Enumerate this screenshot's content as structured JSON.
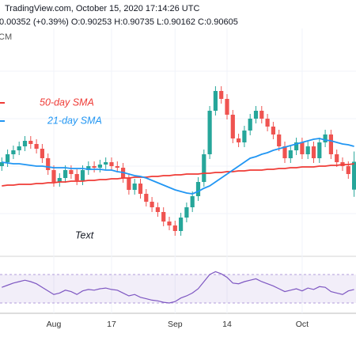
{
  "header": {
    "title": "TradingView.com, October 15, 2020 17:14:26 UTC",
    "quote": "0.00352 (+0.39%) O:0.90253 H:0.90735 L:0.90162 C:0.90605",
    "symbol": "CM"
  },
  "chart_data": [
    {
      "type": "candlestick",
      "categories": [
        null,
        null,
        null,
        null,
        null,
        null,
        null,
        null,
        null,
        "Aug",
        null,
        null,
        null,
        null,
        null,
        null,
        null,
        null,
        null,
        "17",
        null,
        null,
        null,
        null,
        null,
        null,
        null,
        null,
        null,
        null,
        "Sep",
        null,
        null,
        null,
        null,
        null,
        null,
        null,
        null,
        "14",
        null,
        null,
        null,
        null,
        null,
        null,
        null,
        null,
        null,
        null,
        null,
        null,
        "Oct",
        null,
        null,
        null,
        null,
        null,
        null,
        null,
        null,
        null
      ],
      "open": [
        0.9055,
        0.906,
        0.907,
        0.9075,
        0.908,
        0.9087,
        0.9083,
        0.9077,
        0.9065,
        0.905,
        0.9035,
        0.904,
        0.905,
        0.9045,
        0.9037,
        0.905,
        0.9055,
        0.9053,
        0.9057,
        0.906,
        0.9055,
        0.9053,
        0.904,
        0.9025,
        0.9033,
        0.902,
        0.901,
        0.9003,
        0.8997,
        0.8985,
        0.898,
        0.8973,
        0.899,
        0.9003,
        0.9017,
        0.9035,
        0.907,
        0.9125,
        0.915,
        0.914,
        0.912,
        0.909,
        0.9085,
        0.91,
        0.9115,
        0.9125,
        0.9115,
        0.9105,
        0.9095,
        0.908,
        0.9065,
        0.9075,
        0.9085,
        0.907,
        0.908,
        0.9065,
        0.9085,
        0.9095,
        0.907,
        0.906,
        0.9055,
        0.90253
      ],
      "high": [
        0.9066,
        0.9076,
        0.9081,
        0.9086,
        0.9093,
        0.9093,
        0.9089,
        0.9083,
        0.9071,
        0.9056,
        0.9046,
        0.9056,
        0.9056,
        0.9051,
        0.9056,
        0.9061,
        0.9061,
        0.9063,
        0.9066,
        0.9066,
        0.9061,
        0.9059,
        0.9046,
        0.9039,
        0.9039,
        0.9026,
        0.9016,
        0.9009,
        0.9003,
        0.8991,
        0.8986,
        0.8996,
        0.9009,
        0.9023,
        0.9041,
        0.9076,
        0.9131,
        0.9156,
        0.9156,
        0.9146,
        0.9126,
        0.9096,
        0.9106,
        0.9121,
        0.9131,
        0.9131,
        0.9121,
        0.9111,
        0.9101,
        0.9086,
        0.9081,
        0.9091,
        0.9091,
        0.9086,
        0.9086,
        0.9091,
        0.9101,
        0.9101,
        0.9076,
        0.9066,
        0.9061,
        0.90735
      ],
      "low": [
        0.9049,
        0.9054,
        0.9064,
        0.9069,
        0.9074,
        0.9077,
        0.9071,
        0.9059,
        0.9044,
        0.9029,
        0.9029,
        0.9034,
        0.9039,
        0.9031,
        0.9031,
        0.9044,
        0.9047,
        0.9047,
        0.9051,
        0.9049,
        0.9047,
        0.9034,
        0.9019,
        0.9019,
        0.9014,
        0.9004,
        0.8997,
        0.8991,
        0.8979,
        0.8974,
        0.8967,
        0.8967,
        0.8984,
        0.8997,
        0.9011,
        0.9029,
        0.9064,
        0.9119,
        0.9134,
        0.9114,
        0.9084,
        0.9079,
        0.9079,
        0.9094,
        0.9109,
        0.9109,
        0.9099,
        0.9089,
        0.9074,
        0.9059,
        0.9059,
        0.9069,
        0.9064,
        0.9064,
        0.9059,
        0.9059,
        0.9079,
        0.9064,
        0.9054,
        0.9049,
        0.9039,
        0.90162
      ],
      "close": [
        0.906,
        0.907,
        0.9075,
        0.908,
        0.9087,
        0.9083,
        0.9077,
        0.9065,
        0.905,
        0.9035,
        0.904,
        0.905,
        0.9045,
        0.9037,
        0.905,
        0.9055,
        0.9053,
        0.9057,
        0.906,
        0.9055,
        0.9053,
        0.904,
        0.9025,
        0.9033,
        0.902,
        0.901,
        0.9003,
        0.8997,
        0.8985,
        0.898,
        0.8973,
        0.899,
        0.9003,
        0.9017,
        0.9035,
        0.907,
        0.9125,
        0.915,
        0.914,
        0.912,
        0.909,
        0.9085,
        0.91,
        0.9115,
        0.9125,
        0.9115,
        0.9105,
        0.9095,
        0.908,
        0.9065,
        0.9075,
        0.9085,
        0.907,
        0.908,
        0.9065,
        0.9085,
        0.9095,
        0.907,
        0.906,
        0.9055,
        0.9045,
        0.90605
      ],
      "up_color": "#26a69a",
      "down_color": "#ef5350",
      "series": [
        {
          "name": "50-day SMA",
          "color": "#ef3b36",
          "values": [
            0.903,
            0.9031,
            0.9031,
            0.9032,
            0.9032,
            0.9032,
            0.9033,
            0.9033,
            0.9034,
            0.9034,
            0.9035,
            0.9035,
            0.9036,
            0.9036,
            0.9036,
            0.9037,
            0.9037,
            0.9038,
            0.9038,
            0.9039,
            0.9039,
            0.904,
            0.904,
            0.9041,
            0.9041,
            0.9041,
            0.9042,
            0.9042,
            0.9043,
            0.9043,
            0.9044,
            0.9044,
            0.9045,
            0.9045,
            0.9045,
            0.9046,
            0.9046,
            0.9047,
            0.9047,
            0.9048,
            0.9048,
            0.9049,
            0.9049,
            0.905,
            0.905,
            0.905,
            0.9051,
            0.9051,
            0.9052,
            0.9052,
            0.9053,
            0.9053,
            0.9054,
            0.9054,
            0.9054,
            0.9055,
            0.9055,
            0.9056,
            0.9056,
            0.9057,
            0.9057,
            0.9058
          ]
        },
        {
          "name": "21-day SMA",
          "color": "#2196f3",
          "values": [
            0.906,
            0.9059,
            0.9058,
            0.9058,
            0.9057,
            0.9056,
            0.9055,
            0.9055,
            0.9054,
            0.9053,
            0.9053,
            0.9053,
            0.9052,
            0.9052,
            0.9052,
            0.9051,
            0.9051,
            0.9051,
            0.905,
            0.905,
            0.9048,
            0.9047,
            0.9045,
            0.9043,
            0.9042,
            0.904,
            0.9037,
            0.9034,
            0.9031,
            0.9028,
            0.9025,
            0.9023,
            0.9021,
            0.902,
            0.9023,
            0.9027,
            0.903,
            0.9035,
            0.904,
            0.9045,
            0.905,
            0.9055,
            0.906,
            0.9065,
            0.9067,
            0.907,
            0.9072,
            0.9075,
            0.9077,
            0.9079,
            0.9081,
            0.9083,
            0.9085,
            0.9087,
            0.9089,
            0.909,
            0.9088,
            0.9087,
            0.9085,
            0.9083,
            0.9082,
            0.908
          ]
        }
      ],
      "annotation": "Text",
      "ylim": [
        0.8945,
        0.9225
      ]
    },
    {
      "type": "line",
      "series": [
        {
          "color": "#7e57c2",
          "values": [
            52,
            55,
            58,
            60,
            62,
            60,
            57,
            52,
            47,
            42,
            44,
            48,
            46,
            42,
            47,
            49,
            48,
            50,
            51,
            49,
            48,
            44,
            40,
            42,
            38,
            36,
            34,
            33,
            31,
            30,
            32,
            37,
            40,
            44,
            50,
            60,
            70,
            74,
            71,
            66,
            58,
            57,
            60,
            62,
            64,
            60,
            57,
            54,
            50,
            46,
            48,
            50,
            47,
            51,
            49,
            53,
            52,
            46,
            44,
            42,
            47,
            49
          ]
        }
      ],
      "band": [
        30,
        70
      ],
      "ylim": [
        0,
        100
      ]
    }
  ]
}
